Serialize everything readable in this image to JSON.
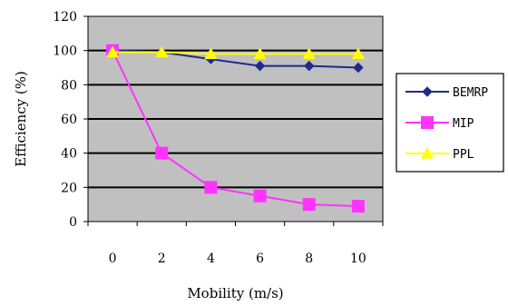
{
  "chart_data": {
    "type": "line",
    "x": [
      0,
      2,
      4,
      6,
      8,
      10
    ],
    "xlabel": "Mobility (m/s)",
    "ylabel": "Efficiency (%)",
    "xticks": [
      "0",
      "2",
      "4",
      "6",
      "8",
      "10"
    ],
    "yticks": [
      "0",
      "20",
      "40",
      "60",
      "80",
      "100",
      "120"
    ],
    "ylim": [
      0,
      120
    ],
    "grid": true,
    "legend_position": "right",
    "plot_background": "#c0c0c0",
    "series": [
      {
        "name": "BEMRP",
        "color": "#1f2a8c",
        "marker": "diamond",
        "values": [
          100,
          99,
          95,
          91,
          91,
          90
        ]
      },
      {
        "name": "MIP",
        "color": "#ff33ff",
        "marker": "square",
        "values": [
          100,
          40,
          20,
          15,
          10,
          9
        ]
      },
      {
        "name": "PPL",
        "color": "#ffff00",
        "marker": "triangle",
        "values": [
          99,
          99,
          98,
          98,
          98,
          98
        ]
      }
    ]
  }
}
